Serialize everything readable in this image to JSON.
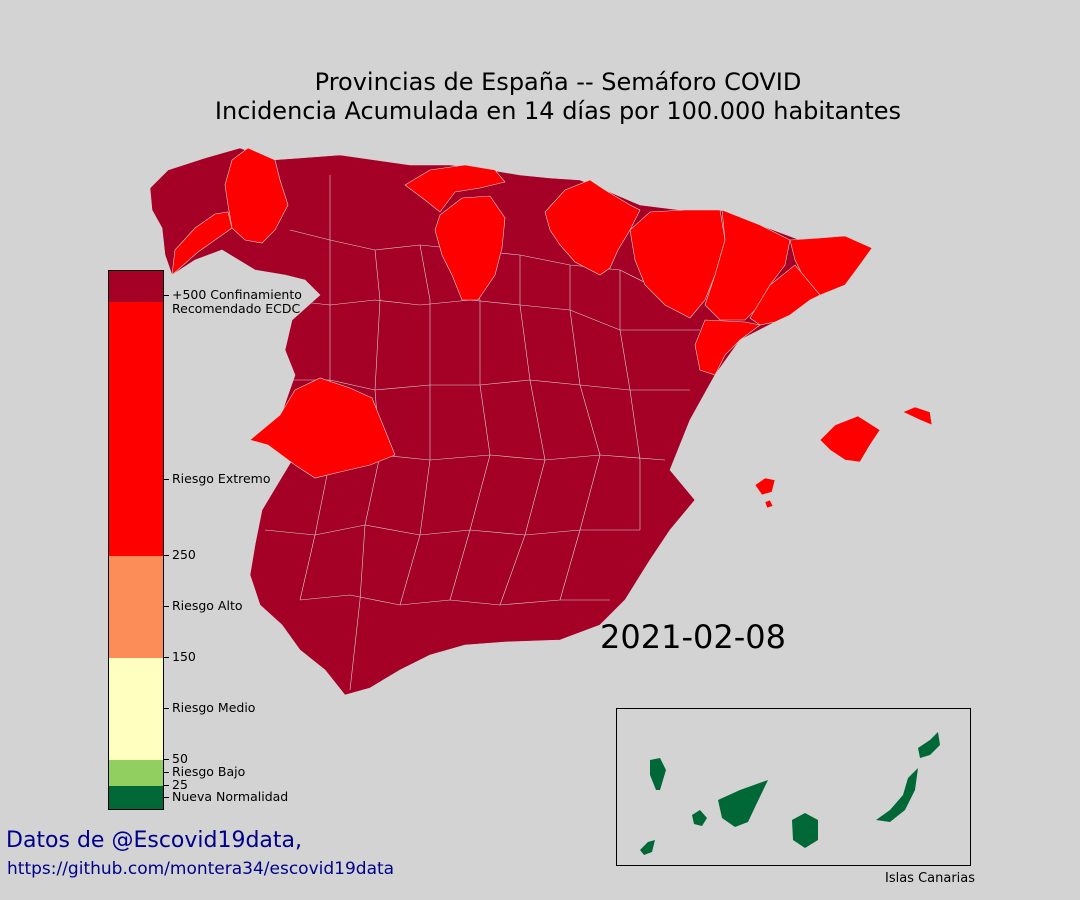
{
  "title": {
    "line1": "Provincias de España -- Semáforo COVID",
    "line2": "Incidencia Acumulada en 14 días por 100.000 habitantes"
  },
  "date": "2021-02-08",
  "inset": {
    "label": "Islas Canarias",
    "fill_color": "#006837"
  },
  "legend": {
    "segments": [
      {
        "name": "Confinamiento",
        "color": "#a50026"
      },
      {
        "name": "Riesgo Extremo",
        "color": "#ff0000"
      },
      {
        "name": "Riesgo Alto",
        "color": "#fc8d59"
      },
      {
        "name": "Riesgo Medio",
        "color": "#ffffc0"
      },
      {
        "name": "Riesgo Bajo",
        "color": "#91cf60"
      },
      {
        "name": "Nueva Normalidad",
        "color": "#006837"
      }
    ],
    "labels": {
      "confinamiento_line1": "+500 Confinamiento",
      "confinamiento_line2": "Recomendado ECDC",
      "extremo": "Riesgo Extremo",
      "v250": "250",
      "alto": "Riesgo Alto",
      "v150": "150",
      "medio": "Riesgo Medio",
      "v50": "50",
      "bajo": "Riesgo Bajo",
      "v25": "25",
      "normalidad": "Nueva Normalidad"
    }
  },
  "credits": {
    "line1": "Datos de @Escovid19data,",
    "line2": "https://github.com/montera34/escovid19data"
  },
  "colors": {
    "background": "#d3d3d3",
    "confinamiento": "#a50026",
    "extremo": "#ff0000",
    "canarias": "#006837",
    "credit_text": "#00008b"
  }
}
